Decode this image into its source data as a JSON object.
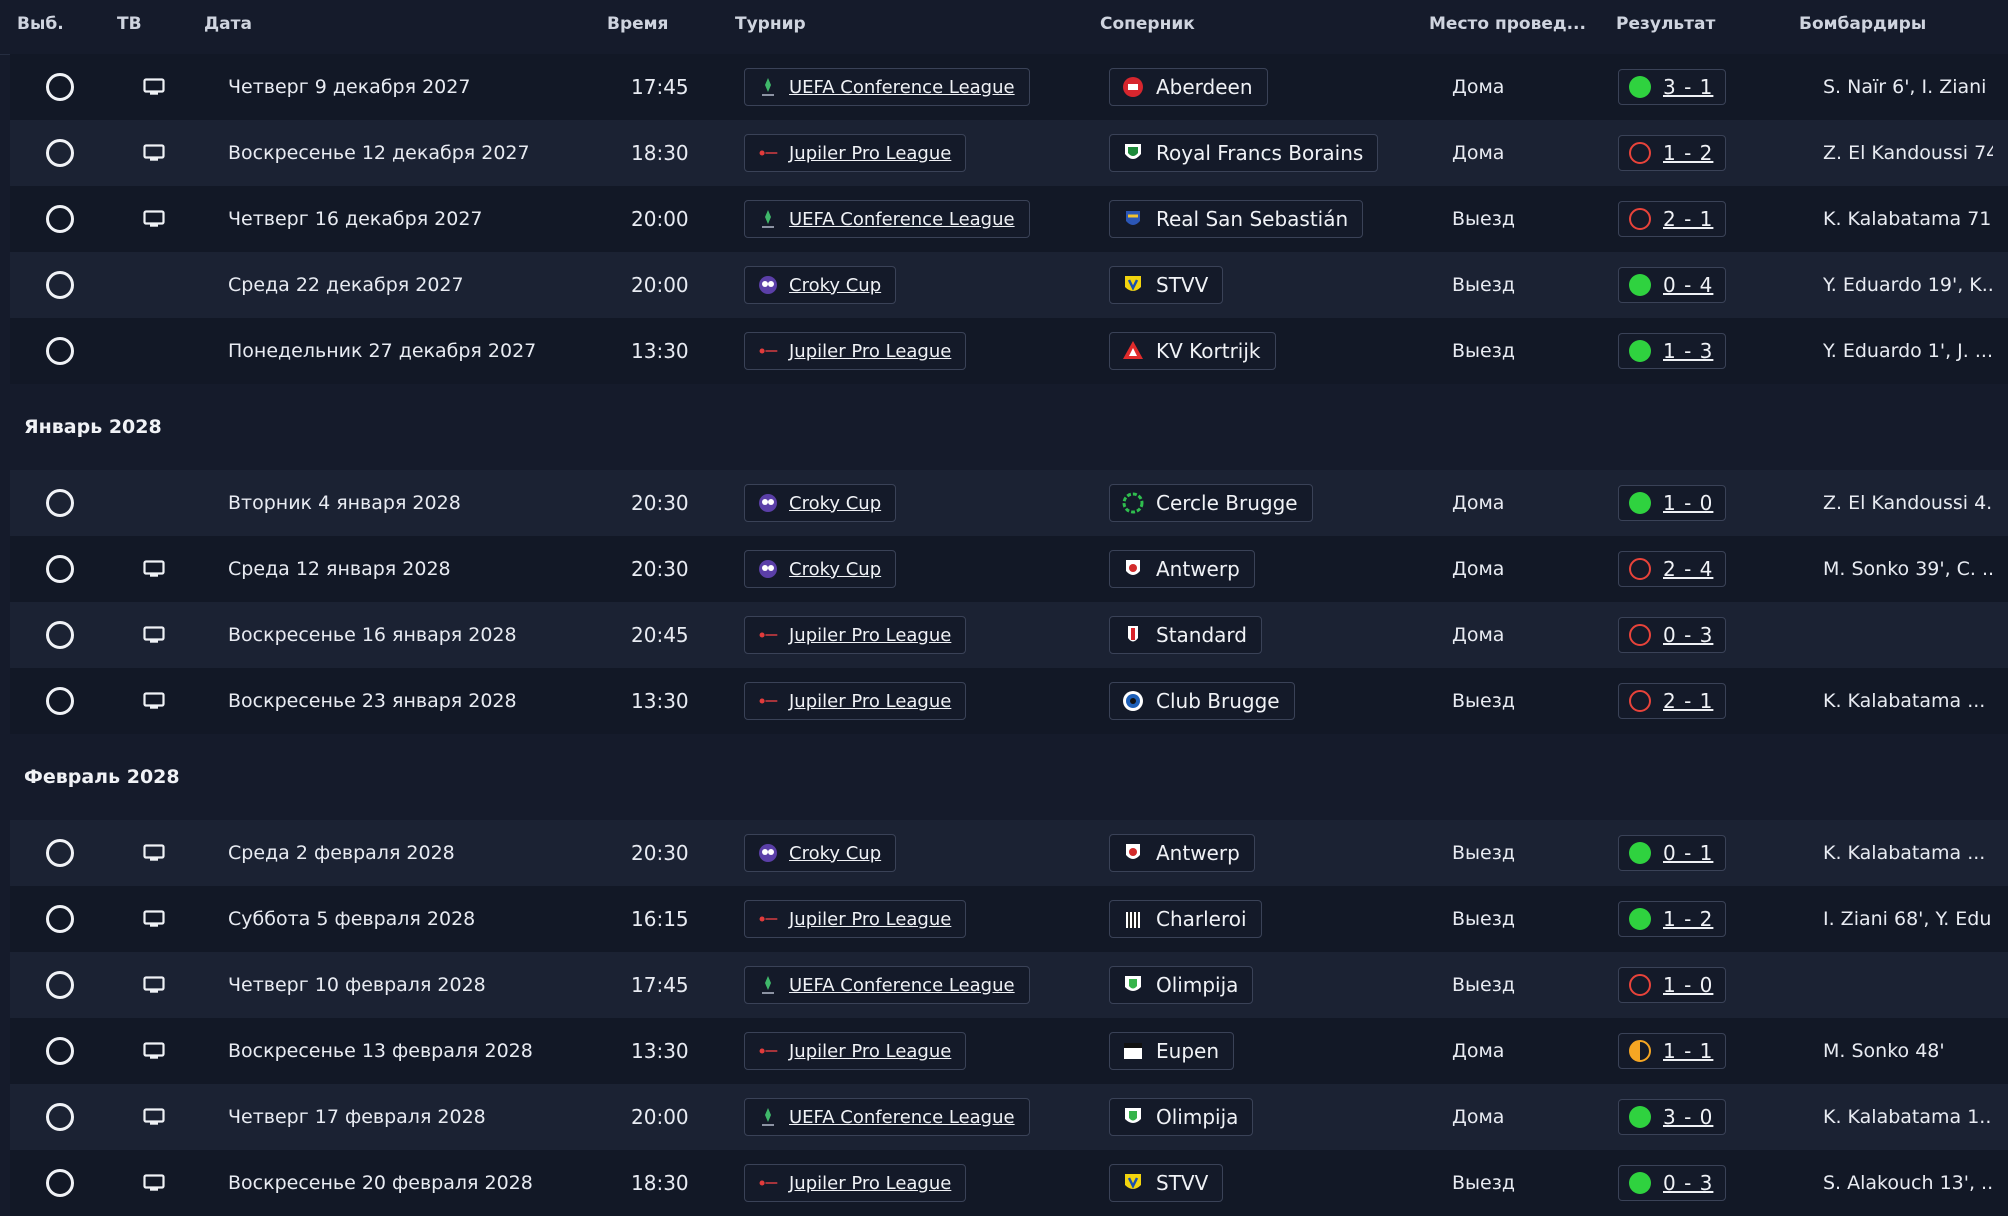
{
  "columns": [
    "Выб.",
    "ТВ",
    "Дата",
    "Время",
    "Турнир",
    "Соперник",
    "Место провед...",
    "Результат",
    "Бомбардиры"
  ],
  "colors": {
    "win": "#2fd23f",
    "loss": "#e8433a",
    "draw": "#f5a623"
  },
  "groups": [
    {
      "month": "",
      "matches": [
        {
          "tv": true,
          "date": "Четверг 9 декабря 2027",
          "time": "17:45",
          "comp": "UEFA Conference League",
          "comp_icon": "conference-league-icon",
          "opp": "Aberdeen",
          "opp_icon": "aberdeen-crest-icon",
          "venue": "Дома",
          "outcome": "win",
          "score": "3 - 1",
          "scorers": "S. Naïr 6', I. Ziani ..."
        },
        {
          "tv": true,
          "date": "Воскресенье 12 декабря 2027",
          "time": "18:30",
          "comp": "Jupiler Pro League",
          "comp_icon": "pro-league-icon",
          "opp": "Royal Francs Borains",
          "opp_icon": "francs-borains-crest-icon",
          "venue": "Дома",
          "outcome": "loss",
          "score": "1 - 2",
          "scorers": "Z. El Kandoussi 74'"
        },
        {
          "tv": true,
          "date": "Четверг 16 декабря 2027",
          "time": "20:00",
          "comp": "UEFA Conference League",
          "comp_icon": "conference-league-icon",
          "opp": "Real San Sebastián",
          "opp_icon": "real-sociedad-crest-icon",
          "venue": "Выезд",
          "outcome": "loss",
          "score": "2 - 1",
          "scorers": "K. Kalabatama 71'"
        },
        {
          "tv": false,
          "date": "Среда 22 декабря 2027",
          "time": "20:00",
          "comp": "Croky Cup",
          "comp_icon": "croky-cup-icon",
          "opp": "STVV",
          "opp_icon": "stvv-crest-icon",
          "venue": "Выезд",
          "outcome": "win",
          "score": "0 - 4",
          "scorers": "Y. Eduardo 19', K...."
        },
        {
          "tv": false,
          "date": "Понедельник 27 декабря 2027",
          "time": "13:30",
          "comp": "Jupiler Pro League",
          "comp_icon": "pro-league-icon",
          "opp": "KV Kortrijk",
          "opp_icon": "kortrijk-crest-icon",
          "venue": "Выезд",
          "outcome": "win",
          "score": "1 - 3",
          "scorers": "Y. Eduardo 1', J. ..."
        }
      ]
    },
    {
      "month": "Январь 2028",
      "matches": [
        {
          "tv": false,
          "date": "Вторник 4 января 2028",
          "time": "20:30",
          "comp": "Croky Cup",
          "comp_icon": "croky-cup-icon",
          "opp": "Cercle Brugge",
          "opp_icon": "cercle-brugge-crest-icon",
          "venue": "Дома",
          "outcome": "win",
          "score": "1 - 0",
          "scorers": "Z. El Kandoussi 4..."
        },
        {
          "tv": true,
          "date": "Среда 12 января 2028",
          "time": "20:30",
          "comp": "Croky Cup",
          "comp_icon": "croky-cup-icon",
          "opp": "Antwerp",
          "opp_icon": "antwerp-crest-icon",
          "venue": "Дома",
          "outcome": "loss",
          "score": "2 - 4",
          "scorers": "M. Sonko 39', C. ..."
        },
        {
          "tv": true,
          "date": "Воскресенье 16 января 2028",
          "time": "20:45",
          "comp": "Jupiler Pro League",
          "comp_icon": "pro-league-icon",
          "opp": "Standard",
          "opp_icon": "standard-crest-icon",
          "venue": "Дома",
          "outcome": "loss",
          "score": "0 - 3",
          "scorers": ""
        },
        {
          "tv": true,
          "date": "Воскресенье 23 января 2028",
          "time": "13:30",
          "comp": "Jupiler Pro League",
          "comp_icon": "pro-league-icon",
          "opp": "Club Brugge",
          "opp_icon": "club-brugge-crest-icon",
          "venue": "Выезд",
          "outcome": "loss",
          "score": "2 - 1",
          "scorers": "K. Kalabatama ..."
        }
      ]
    },
    {
      "month": "Февраль 2028",
      "matches": [
        {
          "tv": true,
          "date": "Среда 2 февраля 2028",
          "time": "20:30",
          "comp": "Croky Cup",
          "comp_icon": "croky-cup-icon",
          "opp": "Antwerp",
          "opp_icon": "antwerp-crest-icon",
          "venue": "Выезд",
          "outcome": "win",
          "score": "0 - 1",
          "scorers": "K. Kalabatama ..."
        },
        {
          "tv": true,
          "date": "Суббота 5 февраля 2028",
          "time": "16:15",
          "comp": "Jupiler Pro League",
          "comp_icon": "pro-league-icon",
          "opp": "Charleroi",
          "opp_icon": "charleroi-crest-icon",
          "venue": "Выезд",
          "outcome": "win",
          "score": "1 - 2",
          "scorers": "I. Ziani 68', Y. Edu..."
        },
        {
          "tv": true,
          "date": "Четверг 10 февраля 2028",
          "time": "17:45",
          "comp": "UEFA Conference League",
          "comp_icon": "conference-league-icon",
          "opp": "Olimpija",
          "opp_icon": "olimpija-crest-icon",
          "venue": "Выезд",
          "outcome": "loss",
          "score": "1 - 0",
          "scorers": ""
        },
        {
          "tv": true,
          "date": "Воскресенье 13 февраля 2028",
          "time": "13:30",
          "comp": "Jupiler Pro League",
          "comp_icon": "pro-league-icon",
          "opp": "Eupen",
          "opp_icon": "eupen-crest-icon",
          "venue": "Дома",
          "outcome": "draw",
          "score": "1 - 1",
          "scorers": "M. Sonko 48'"
        },
        {
          "tv": true,
          "date": "Четверг 17 февраля 2028",
          "time": "20:00",
          "comp": "UEFA Conference League",
          "comp_icon": "conference-league-icon",
          "opp": "Olimpija",
          "opp_icon": "olimpija-crest-icon",
          "venue": "Дома",
          "outcome": "win",
          "score": "3 - 0",
          "scorers": "K. Kalabatama 1..."
        },
        {
          "tv": true,
          "date": "Воскресенье 20 февраля 2028",
          "time": "18:30",
          "comp": "Jupiler Pro League",
          "comp_icon": "pro-league-icon",
          "opp": "STVV",
          "opp_icon": "stvv-crest-icon",
          "venue": "Выезд",
          "outcome": "win",
          "score": "0 - 3",
          "scorers": "S. Alakouch 13', ..."
        }
      ]
    }
  ]
}
